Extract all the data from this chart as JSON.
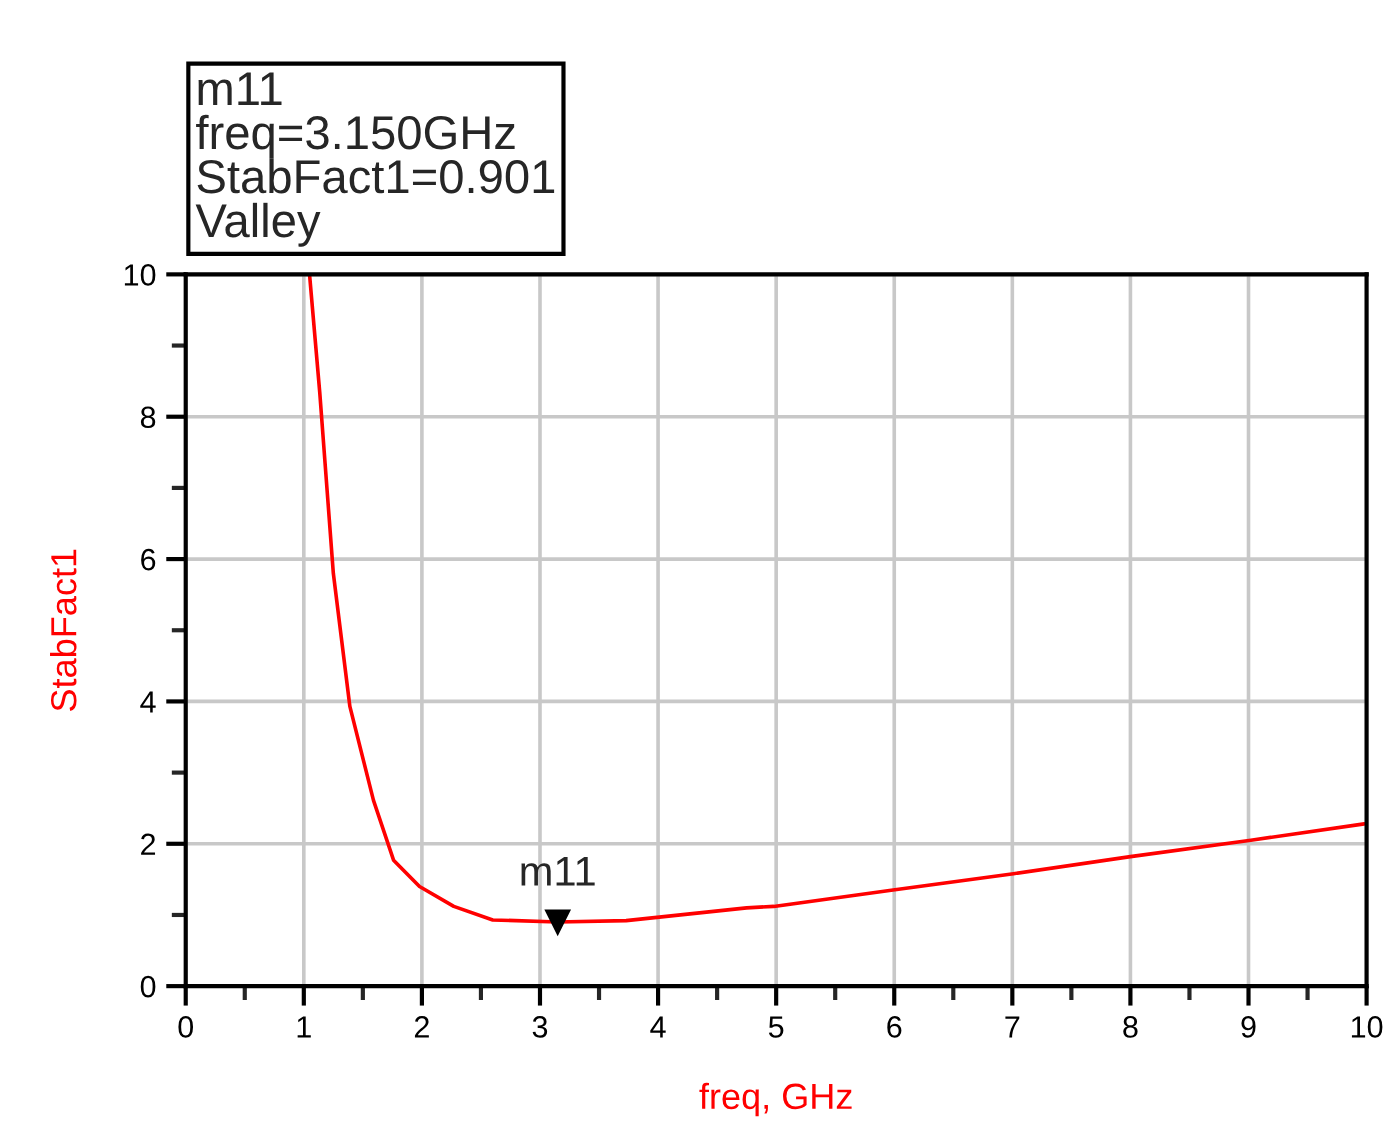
{
  "chart_data": {
    "type": "line",
    "xlabel": "freq, GHz",
    "ylabel": "StabFact1",
    "x": [
      1.05,
      1.135,
      1.25,
      1.39,
      1.59,
      1.76,
      1.98,
      2.27,
      2.6,
      3.15,
      3.73,
      4.75,
      4.98,
      5.99,
      7.01,
      8.0,
      9.02,
      9.98
    ],
    "series": [
      {
        "color": "#ff0000",
        "values": [
          9.97,
          8.34,
          5.8,
          3.93,
          2.61,
          1.77,
          1.4,
          1.12,
          0.93,
          0.901,
          0.92,
          1.1,
          1.12,
          1.35,
          1.58,
          1.82,
          2.05,
          2.28
        ]
      }
    ],
    "xlim": [
      0,
      10
    ],
    "ylim": [
      0,
      10
    ],
    "xticks": [
      0,
      {
        "value": 0.5,
        "label": null
      },
      1,
      {
        "value": 1.5,
        "label": null
      },
      2,
      {
        "value": 2.5,
        "label": null
      },
      3,
      {
        "value": 3.5,
        "label": null
      },
      4,
      {
        "value": 4.5,
        "label": null
      },
      5,
      {
        "value": 5.5,
        "label": null
      },
      6,
      {
        "value": 6.5,
        "label": null
      },
      7,
      {
        "value": 7.5,
        "label": null
      },
      8,
      {
        "value": 8.5,
        "label": null
      },
      9,
      {
        "value": 9.5,
        "label": null
      },
      10
    ],
    "yticks": [
      0,
      {
        "value": 1,
        "label": null
      },
      2,
      {
        "value": 3,
        "label": null
      },
      4,
      {
        "value": 5,
        "label": null
      },
      6,
      {
        "value": 7,
        "label": null
      },
      8,
      {
        "value": 9,
        "label": null
      },
      10
    ],
    "grid": true,
    "marker": "none",
    "line_style": "solid",
    "annotations": [
      "m11\nfreq=3.150GHz\nStabFact1=0.901\nValley",
      {
        "text": "m11",
        "x": 3.15,
        "y": 0.901
      }
    ]
  }
}
